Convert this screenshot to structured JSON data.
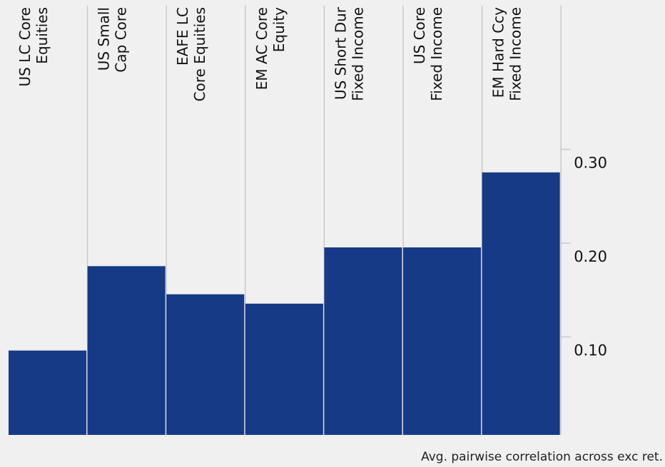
{
  "chart_data": {
    "type": "bar",
    "categories": [
      [
        "US LC Core",
        "Equities"
      ],
      [
        "US Small",
        "Cap Core"
      ],
      [
        "EAFE LC",
        "Core Equities"
      ],
      [
        "EM AC Core",
        "Equity"
      ],
      [
        "US Short Dur",
        "Fixed Income"
      ],
      [
        "US Core",
        "Fixed Income"
      ],
      [
        "EM Hard Ccy",
        "Fixed Income"
      ]
    ],
    "values": [
      0.09,
      0.18,
      0.15,
      0.14,
      0.2,
      0.2,
      0.28
    ],
    "ylim": [
      0,
      0.45
    ],
    "yticks": [
      0.1,
      0.2,
      0.3
    ],
    "ytick_labels": [
      "0.10",
      "0.20",
      "0.30"
    ],
    "yaxis_side": "right",
    "xlabel": "Avg. pairwise correlation across exc ret.",
    "ylabel": "",
    "title": "",
    "legend": "none",
    "grid": "vertical separators",
    "colors": {
      "bar": "#173a87",
      "separator": "#c9c9c9",
      "background": "#f0f0f0",
      "text": "#111111"
    }
  }
}
